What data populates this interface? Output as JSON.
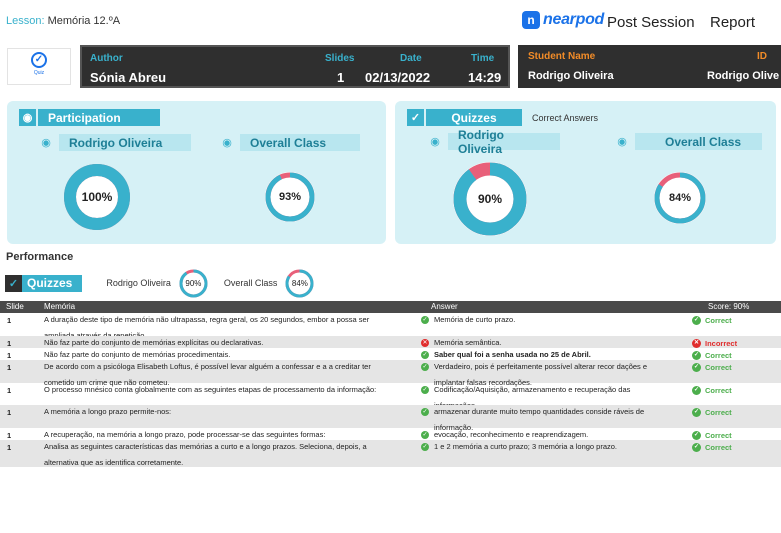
{
  "header": {
    "lesson_label": "Lesson:",
    "lesson_name": "Memória 12.ºA",
    "brand": "nearpod",
    "nav": [
      "Post Session",
      "Report"
    ]
  },
  "quiz_badge": {
    "label": "Quiz"
  },
  "session_info": {
    "author_label": "Author",
    "author": "Sónia  Abreu",
    "slides_label": "Slides",
    "slides": "1",
    "date_label": "Date",
    "date": "02/13/2022",
    "time_label": "Time",
    "time": "14:29"
  },
  "student_info": {
    "name_label": "Student Name",
    "name": "Rodrigo Oliveira",
    "id_label": "ID",
    "id": "Rodrigo Olive"
  },
  "participation": {
    "title": "Participation",
    "student_name": "Rodrigo Oliveira",
    "student_value": "100%",
    "student_pct": 100,
    "class_name": "Overall Class",
    "class_value": "93%",
    "class_pct": 93
  },
  "quizzes": {
    "title": "Quizzes",
    "subtitle": "Correct Answers",
    "student_name": "Rodrigo Oliveira",
    "student_value": "90%",
    "student_pct": 90,
    "class_name": "Overall Class",
    "class_value": "84%",
    "class_pct": 84
  },
  "performance": {
    "title": "Performance",
    "tag": "Quizzes",
    "student_name": "Rodrigo Oliveira",
    "student_value": "90%",
    "student_pct": 90,
    "class_name": "Overall Class",
    "class_value": "84%",
    "class_pct": 84
  },
  "colors": {
    "accent": "#39b1cc",
    "wrong": "#e8607a",
    "correct": "#4cae4c",
    "incorrect": "#e02d2d"
  },
  "table": {
    "headers": {
      "slide": "Slide",
      "question": "Memória",
      "answer": "Answer",
      "score": "Score: 90%"
    },
    "rows": [
      {
        "slide": "1",
        "question": "A duração deste tipo de memória não ultrapassa, regra geral, os 20 segundos, embor a possa ser ampliada através da repetição.",
        "answer": "Memória de curto prazo.",
        "result": "Correct",
        "correct": true,
        "bold": false
      },
      {
        "slide": "1",
        "question": "Não faz parte do conjunto de memórias explícitas ou declarativas.",
        "answer": "Memória semântica.",
        "result": "Incorrect",
        "correct": false,
        "bold": false
      },
      {
        "slide": "1",
        "question": "Não faz parte do conjunto de memórias procedimentais.",
        "answer": "Saber qual foi a senha usada no 25 de Abril.",
        "result": "Correct",
        "correct": true,
        "bold": true
      },
      {
        "slide": "1",
        "question": "De acordo com a psicóloga Elisabeth Loftus, é possível levar alguém a confessar e a a creditar ter cometido um crime que não cometeu.",
        "answer": "Verdadeiro, pois é perfeitamente possível alterar recor dações e implantar falsas recordações.",
        "result": "Correct",
        "correct": true,
        "bold": false
      },
      {
        "slide": "1",
        "question": " O processo mnésico conta globalmente com as seguintes etapas de processamento da informação:",
        "answer": "Codificação/Aquisição, armazenamento e recuperação das informações.",
        "result": "Correct",
        "correct": true,
        "bold": false
      },
      {
        "slide": "1",
        "question": "A memória a longo prazo permite-nos:",
        "answer": "armazenar durante muito tempo quantidades conside ráveis de informação.",
        "result": "Correct",
        "correct": true,
        "bold": false
      },
      {
        "slide": "1",
        "question": "A recuperação, na memória a longo prazo, pode processar-se das seguintes formas:",
        "answer": "evocação, reconhecimento e reaprendizagem.",
        "result": "Correct",
        "correct": true,
        "bold": false
      },
      {
        "slide": "1",
        "question": "Analisa as seguintes características das memórias a curto e a longo prazos. Seleciona, depois, a alternativa que as identifica corretamente.",
        "answer": "1 e 2 memória a curto prazo; 3 memória a longo prazo.",
        "result": "Correct",
        "correct": true,
        "bold": false
      }
    ]
  }
}
